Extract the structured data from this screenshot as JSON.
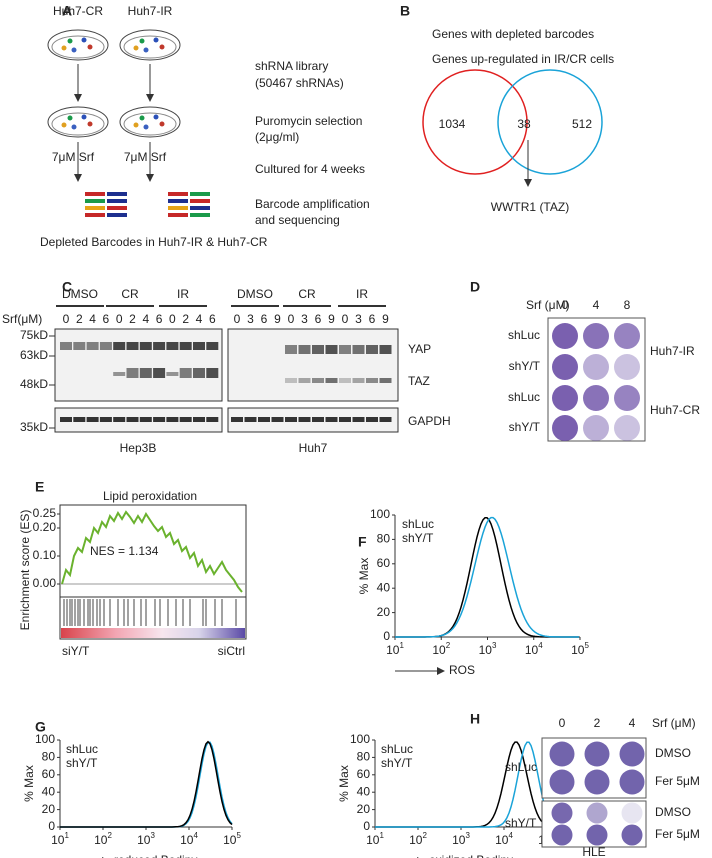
{
  "panel_a": {
    "label": "A",
    "dish_labels": [
      "Huh7-CR",
      "Huh7-IR"
    ],
    "steps": [
      "shRNA library",
      "(50467 shRNAs)",
      "Puromycin selection",
      "(2μg/ml)",
      "Cultured for 4 weeks",
      "Barcode amplification",
      "and sequencing"
    ],
    "drug_labels": [
      "7μM Srf",
      "7μM Srf"
    ],
    "footer": "Depleted Barcodes in Huh7-IR & Huh7-CR"
  },
  "panel_b": {
    "label": "B",
    "legend": [
      "Genes with depleted barcodes",
      "Genes up-regulated in IR/CR cells"
    ],
    "counts": [
      "1034",
      "38",
      "512"
    ],
    "gene": "WWTR1 (TAZ)"
  },
  "panel_c": {
    "label": "C",
    "groups": [
      "DMSO",
      "CR",
      "IR",
      "DMSO",
      "CR",
      "IR"
    ],
    "srf_label": "Srf(μM)",
    "lanes_left": [
      "0",
      "2",
      "4",
      "6",
      "0",
      "2",
      "4",
      "6",
      "0",
      "2",
      "4",
      "6"
    ],
    "lanes_right": [
      "0",
      "3",
      "6",
      "9",
      "0",
      "3",
      "6",
      "9",
      "0",
      "3",
      "6",
      "9"
    ],
    "markers": [
      "75kD",
      "63kD",
      "48kD",
      "35kD"
    ],
    "proteins": [
      "YAP",
      "TAZ",
      "GAPDH"
    ],
    "cell_lines": [
      "Hep3B",
      "Huh7"
    ]
  },
  "panel_d": {
    "label": "D",
    "srf_label": "Srf  (μM)",
    "doses": [
      "0",
      "4",
      "8"
    ],
    "rows": [
      "shLuc",
      "shY/T",
      "shLuc",
      "shY/T"
    ],
    "cell_lines": [
      "Huh7-IR",
      "Huh7-CR"
    ]
  },
  "panel_e": {
    "label": "E",
    "title": "Lipid peroxidation",
    "y_label": "Enrichment score (ES)",
    "yticks": [
      "0.25",
      "0.20",
      "0.10",
      "0.00"
    ],
    "nes": "NES = 1.134",
    "ends": [
      "siY/T",
      "siCtrl"
    ]
  },
  "panel_f": {
    "label": "F",
    "y_label": "% Max",
    "yticks": [
      "0",
      "20",
      "40",
      "60",
      "80",
      "100"
    ],
    "xticks": [
      {
        "base": "10",
        "exp": "1"
      },
      {
        "base": "10",
        "exp": "2"
      },
      {
        "base": "10",
        "exp": "3"
      },
      {
        "base": "10",
        "exp": "4"
      },
      {
        "base": "10",
        "exp": "5"
      }
    ],
    "legend": [
      "shLuc",
      "shY/T"
    ],
    "x_label": "ROS"
  },
  "panel_g": {
    "label": "G",
    "plots": [
      {
        "y_label": "% Max",
        "yticks": [
          "0",
          "20",
          "40",
          "60",
          "80",
          "100"
        ],
        "xticks": [
          {
            "base": "10",
            "exp": "1"
          },
          {
            "base": "10",
            "exp": "2"
          },
          {
            "base": "10",
            "exp": "3"
          },
          {
            "base": "10",
            "exp": "4"
          },
          {
            "base": "10",
            "exp": "5"
          }
        ],
        "legend": [
          "shLuc",
          "shY/T"
        ],
        "x_label": "reduced Bodipy"
      },
      {
        "y_label": "% Max",
        "yticks": [
          "0",
          "20",
          "40",
          "60",
          "80",
          "100"
        ],
        "xticks": [
          {
            "base": "10",
            "exp": "1"
          },
          {
            "base": "10",
            "exp": "2"
          },
          {
            "base": "10",
            "exp": "3"
          },
          {
            "base": "10",
            "exp": "4"
          },
          {
            "base": "10",
            "exp": "5"
          }
        ],
        "legend": [
          "shLuc",
          "shY/T"
        ],
        "x_label": "oxidized Bodipy"
      }
    ]
  },
  "panel_h": {
    "label": "H",
    "doses": [
      "0",
      "2",
      "4"
    ],
    "srf_label": "Srf  (μM)",
    "rows": [
      "shLuc",
      "shY/T"
    ],
    "treatments": [
      "DMSO",
      "Fer 5μM",
      "DMSO",
      "Fer 5μM"
    ],
    "cell_line": "HLE"
  }
}
